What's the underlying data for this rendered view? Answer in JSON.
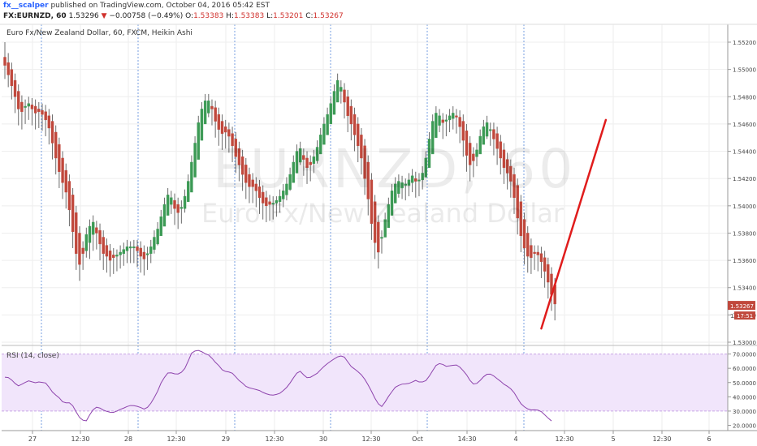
{
  "header": {
    "author": "fx__scalper",
    "published_text": "published on TradingView.com, October 04, 2016 05:42 EST",
    "symbol": "FX:EURNZD, 60",
    "last": "1.53296",
    "change_arrow": "▼",
    "change": "−0.00758 (−0.49%)",
    "open_label": "O:",
    "open": "1.53383",
    "high_label": "H:",
    "high": "1.53383",
    "low_label": "L:",
    "low": "1.53201",
    "close_label": "C:",
    "close": "1.53267"
  },
  "legend_text": "Euro Fx/New Zealand Dollar, 60, FXCM, Heikin Ashi",
  "watermark": {
    "line1": "EURNZD, 60",
    "line2": "Euro Fx/New Zealand Dollar"
  },
  "price_badge": {
    "price": "1.53267",
    "time": "17:51",
    "prefix": "1"
  },
  "colors": {
    "up": "#3c9a55",
    "down": "#c0483c",
    "wick": "#6b6b6b",
    "rsi_line": "#8e44ad",
    "rsi_band": "#f1e5fb",
    "arrow": "#e01c1c",
    "session_line": "#4a7fd6",
    "grid": "#eeeeee"
  },
  "chart_data": [
    {
      "type": "candlestick",
      "title": "Euro Fx/New Zealand Dollar, 60, FXCM, Heikin Ashi",
      "ylim": [
        1.53,
        1.552
      ],
      "y_ticks": [
        "1.55200",
        "1.55000",
        "1.54800",
        "1.54600",
        "1.54400",
        "1.54200",
        "1.54000",
        "1.53800",
        "1.53600",
        "1.53400",
        "1.53200",
        "1.53000"
      ],
      "x_ticks": [
        "27",
        "12:30",
        "28",
        "12:30",
        "29",
        "12:30",
        "30",
        "12:30",
        "Oct",
        "14:30",
        "4",
        "12:30",
        "5",
        "12:30",
        "6"
      ],
      "candles": [
        [
          1.5509,
          1.5503,
          1.552,
          1.5493
        ],
        [
          1.5505,
          1.5496,
          1.5512,
          1.5487
        ],
        [
          1.55,
          1.5488,
          1.5505,
          1.5478
        ],
        [
          1.5492,
          1.548,
          1.5497,
          1.5468
        ],
        [
          1.5484,
          1.5471,
          1.5489,
          1.5459
        ],
        [
          1.5476,
          1.5469,
          1.5481,
          1.5456
        ],
        [
          1.5473,
          1.5473,
          1.5478,
          1.546
        ],
        [
          1.5473,
          1.5475,
          1.548,
          1.5463
        ],
        [
          1.5474,
          1.5471,
          1.5479,
          1.5459
        ],
        [
          1.5473,
          1.5468,
          1.5478,
          1.5456
        ],
        [
          1.5471,
          1.5469,
          1.5476,
          1.5457
        ],
        [
          1.547,
          1.5467,
          1.5475,
          1.5455
        ],
        [
          1.5469,
          1.5463,
          1.5474,
          1.5451
        ],
        [
          1.5466,
          1.5457,
          1.5471,
          1.5445
        ],
        [
          1.5462,
          1.5446,
          1.5467,
          1.5434
        ],
        [
          1.5454,
          1.5435,
          1.5459,
          1.5423
        ],
        [
          1.5445,
          1.5425,
          1.545,
          1.5413
        ],
        [
          1.5435,
          1.5417,
          1.544,
          1.5405
        ],
        [
          1.5426,
          1.541,
          1.5431,
          1.5398
        ],
        [
          1.5418,
          1.5397,
          1.5423,
          1.5385
        ],
        [
          1.5408,
          1.5381,
          1.5413,
          1.5369
        ],
        [
          1.5395,
          1.5365,
          1.54,
          1.5353
        ],
        [
          1.538,
          1.5357,
          1.5385,
          1.5345
        ],
        [
          1.5369,
          1.5365,
          1.5374,
          1.5353
        ],
        [
          1.5367,
          1.5379,
          1.5384,
          1.5362
        ],
        [
          1.5373,
          1.5385,
          1.539,
          1.5361
        ],
        [
          1.5379,
          1.5388,
          1.5393,
          1.5367
        ],
        [
          1.5384,
          1.538,
          1.5389,
          1.5368
        ],
        [
          1.5382,
          1.5372,
          1.5387,
          1.536
        ],
        [
          1.5377,
          1.5365,
          1.5382,
          1.5353
        ],
        [
          1.5371,
          1.5363,
          1.5376,
          1.5351
        ],
        [
          1.5367,
          1.536,
          1.5372,
          1.5348
        ],
        [
          1.5364,
          1.5362,
          1.5369,
          1.535
        ],
        [
          1.5363,
          1.5364,
          1.5368,
          1.5352
        ],
        [
          1.5364,
          1.5366,
          1.5371,
          1.5354
        ],
        [
          1.5365,
          1.5368,
          1.5373,
          1.5356
        ],
        [
          1.5367,
          1.537,
          1.5375,
          1.5358
        ],
        [
          1.5369,
          1.537,
          1.5374,
          1.5358
        ],
        [
          1.537,
          1.537,
          1.5375,
          1.5358
        ],
        [
          1.537,
          1.5367,
          1.5375,
          1.5355
        ],
        [
          1.5369,
          1.5363,
          1.5374,
          1.5351
        ],
        [
          1.5366,
          1.5361,
          1.5371,
          1.5349
        ],
        [
          1.5364,
          1.5365,
          1.537,
          1.5353
        ],
        [
          1.5365,
          1.537,
          1.5375,
          1.5358
        ],
        [
          1.5368,
          1.5377,
          1.5382,
          1.5365
        ],
        [
          1.5372,
          1.5383,
          1.5388,
          1.5371
        ],
        [
          1.5378,
          1.5392,
          1.5397,
          1.538
        ],
        [
          1.5385,
          1.5401,
          1.5406,
          1.5389
        ],
        [
          1.5393,
          1.5408,
          1.5413,
          1.5396
        ],
        [
          1.5401,
          1.5406,
          1.5411,
          1.5394
        ],
        [
          1.5404,
          1.5398,
          1.5409,
          1.5386
        ],
        [
          1.5401,
          1.5395,
          1.5406,
          1.5383
        ],
        [
          1.5398,
          1.5399,
          1.5404,
          1.5387
        ],
        [
          1.5398,
          1.5407,
          1.5412,
          1.5395
        ],
        [
          1.5403,
          1.5418,
          1.5423,
          1.5406
        ],
        [
          1.541,
          1.5432,
          1.5437,
          1.542
        ],
        [
          1.5421,
          1.5446,
          1.5451,
          1.5434
        ],
        [
          1.5434,
          1.5461,
          1.5466,
          1.5449
        ],
        [
          1.5448,
          1.5471,
          1.5476,
          1.5459
        ],
        [
          1.546,
          1.5477,
          1.5482,
          1.5465
        ],
        [
          1.5468,
          1.5477,
          1.5482,
          1.5465
        ],
        [
          1.5473,
          1.5471,
          1.5478,
          1.5459
        ],
        [
          1.5472,
          1.5462,
          1.5477,
          1.545
        ],
        [
          1.5467,
          1.5456,
          1.5472,
          1.5444
        ],
        [
          1.5462,
          1.5453,
          1.5467,
          1.5441
        ],
        [
          1.5458,
          1.5454,
          1.5463,
          1.5442
        ],
        [
          1.5456,
          1.5451,
          1.5461,
          1.5439
        ],
        [
          1.5453,
          1.5444,
          1.5458,
          1.5432
        ],
        [
          1.5449,
          1.5436,
          1.5454,
          1.5424
        ],
        [
          1.5442,
          1.543,
          1.5447,
          1.5418
        ],
        [
          1.5436,
          1.5423,
          1.5441,
          1.5411
        ],
        [
          1.543,
          1.5417,
          1.5435,
          1.5405
        ],
        [
          1.5423,
          1.5414,
          1.5428,
          1.5402
        ],
        [
          1.5419,
          1.5414,
          1.5424,
          1.5402
        ],
        [
          1.5416,
          1.5411,
          1.5421,
          1.5399
        ],
        [
          1.5414,
          1.5406,
          1.5419,
          1.5394
        ],
        [
          1.541,
          1.5402,
          1.5415,
          1.539
        ],
        [
          1.5406,
          1.54,
          1.5411,
          1.5388
        ],
        [
          1.5403,
          1.5401,
          1.5408,
          1.5389
        ],
        [
          1.5402,
          1.5402,
          1.5407,
          1.539
        ],
        [
          1.5402,
          1.5404,
          1.5407,
          1.5392
        ],
        [
          1.5403,
          1.5407,
          1.5412,
          1.5395
        ],
        [
          1.5405,
          1.5411,
          1.5416,
          1.5399
        ],
        [
          1.5408,
          1.5416,
          1.5421,
          1.5404
        ],
        [
          1.5412,
          1.5423,
          1.5428,
          1.5411
        ],
        [
          1.5417,
          1.5432,
          1.5437,
          1.542
        ],
        [
          1.5424,
          1.544,
          1.5445,
          1.5428
        ],
        [
          1.5432,
          1.5442,
          1.5447,
          1.543
        ],
        [
          1.5437,
          1.5434,
          1.5442,
          1.5422
        ],
        [
          1.5435,
          1.5428,
          1.544,
          1.5416
        ],
        [
          1.5432,
          1.543,
          1.5437,
          1.5418
        ],
        [
          1.5431,
          1.5436,
          1.5441,
          1.5424
        ],
        [
          1.5433,
          1.5443,
          1.5448,
          1.5431
        ],
        [
          1.5438,
          1.5452,
          1.5457,
          1.544
        ],
        [
          1.5445,
          1.546,
          1.5465,
          1.5448
        ],
        [
          1.5452,
          1.5467,
          1.5472,
          1.5455
        ],
        [
          1.546,
          1.5475,
          1.548,
          1.5463
        ],
        [
          1.5467,
          1.5484,
          1.5489,
          1.5472
        ],
        [
          1.5476,
          1.5492,
          1.5497,
          1.548
        ],
        [
          1.5484,
          1.5487,
          1.5492,
          1.5475
        ],
        [
          1.5485,
          1.5476,
          1.549,
          1.5464
        ],
        [
          1.548,
          1.5466,
          1.5485,
          1.5454
        ],
        [
          1.5473,
          1.546,
          1.5478,
          1.5448
        ],
        [
          1.5467,
          1.5452,
          1.5472,
          1.544
        ],
        [
          1.546,
          1.5444,
          1.5465,
          1.5432
        ],
        [
          1.5452,
          1.5435,
          1.5457,
          1.5423
        ],
        [
          1.5444,
          1.542,
          1.5449,
          1.5408
        ],
        [
          1.5432,
          1.5405,
          1.5437,
          1.5393
        ],
        [
          1.5419,
          1.5387,
          1.5424,
          1.5375
        ],
        [
          1.5403,
          1.5373,
          1.5408,
          1.5361
        ],
        [
          1.5388,
          1.5366,
          1.5393,
          1.5354
        ],
        [
          1.5377,
          1.5377,
          1.5382,
          1.5365
        ],
        [
          1.5377,
          1.539,
          1.5395,
          1.5378
        ],
        [
          1.5384,
          1.5401,
          1.5406,
          1.5389
        ],
        [
          1.5393,
          1.5411,
          1.5416,
          1.5399
        ],
        [
          1.5402,
          1.5416,
          1.5421,
          1.5404
        ],
        [
          1.5409,
          1.5418,
          1.5423,
          1.5406
        ],
        [
          1.5413,
          1.5417,
          1.5422,
          1.5405
        ],
        [
          1.5415,
          1.5416,
          1.542,
          1.5404
        ],
        [
          1.5415,
          1.5419,
          1.5424,
          1.5407
        ],
        [
          1.5417,
          1.5422,
          1.5427,
          1.541
        ],
        [
          1.542,
          1.5418,
          1.5425,
          1.5406
        ],
        [
          1.5419,
          1.5419,
          1.5424,
          1.5407
        ],
        [
          1.5419,
          1.5424,
          1.5429,
          1.5412
        ],
        [
          1.5421,
          1.5435,
          1.544,
          1.5423
        ],
        [
          1.5428,
          1.5449,
          1.5454,
          1.5437
        ],
        [
          1.5438,
          1.5462,
          1.5467,
          1.545
        ],
        [
          1.545,
          1.5468,
          1.5473,
          1.5456
        ],
        [
          1.5459,
          1.5466,
          1.5471,
          1.5454
        ],
        [
          1.5463,
          1.5461,
          1.5468,
          1.5449
        ],
        [
          1.5462,
          1.5463,
          1.5467,
          1.5451
        ],
        [
          1.5463,
          1.5466,
          1.5471,
          1.5454
        ],
        [
          1.5464,
          1.5468,
          1.5473,
          1.5456
        ],
        [
          1.5466,
          1.5465,
          1.5471,
          1.5453
        ],
        [
          1.5465,
          1.5458,
          1.547,
          1.5446
        ],
        [
          1.5462,
          1.5448,
          1.5467,
          1.5436
        ],
        [
          1.5455,
          1.5437,
          1.546,
          1.5425
        ],
        [
          1.5446,
          1.543,
          1.5451,
          1.5418
        ],
        [
          1.5438,
          1.5433,
          1.5443,
          1.5421
        ],
        [
          1.5436,
          1.5441,
          1.5446,
          1.5429
        ],
        [
          1.5438,
          1.5451,
          1.5456,
          1.5439
        ],
        [
          1.5445,
          1.5458,
          1.5463,
          1.5446
        ],
        [
          1.5451,
          1.5461,
          1.5466,
          1.5449
        ],
        [
          1.5456,
          1.5456,
          1.5461,
          1.5444
        ],
        [
          1.5456,
          1.5449,
          1.5461,
          1.5437
        ],
        [
          1.5453,
          1.5442,
          1.5458,
          1.543
        ],
        [
          1.5447,
          1.5435,
          1.5452,
          1.5423
        ],
        [
          1.5441,
          1.5428,
          1.5446,
          1.5416
        ],
        [
          1.5434,
          1.5424,
          1.5439,
          1.5412
        ],
        [
          1.5429,
          1.5418,
          1.5434,
          1.5406
        ],
        [
          1.5423,
          1.5406,
          1.5428,
          1.5394
        ],
        [
          1.5415,
          1.5391,
          1.542,
          1.5379
        ],
        [
          1.5403,
          1.5378,
          1.5408,
          1.5366
        ],
        [
          1.539,
          1.5369,
          1.5395,
          1.5357
        ],
        [
          1.538,
          1.5363,
          1.5385,
          1.5351
        ],
        [
          1.5371,
          1.5362,
          1.5376,
          1.535
        ],
        [
          1.5366,
          1.5365,
          1.5371,
          1.5353
        ],
        [
          1.5366,
          1.5364,
          1.5371,
          1.5352
        ],
        [
          1.5365,
          1.5359,
          1.537,
          1.5347
        ],
        [
          1.5362,
          1.5352,
          1.5367,
          1.534
        ],
        [
          1.5357,
          1.5344,
          1.5362,
          1.5332
        ],
        [
          1.535,
          1.5335,
          1.5355,
          1.5323
        ],
        [
          1.5342,
          1.5328,
          1.5347,
          1.5316
        ]
      ],
      "projection": {
        "from": [
          158,
          1.531
        ],
        "to": [
          177,
          1.5463
        ]
      }
    },
    {
      "type": "line",
      "title": "RSI (14, close)",
      "ylim": [
        17,
        74
      ],
      "y_ticks": [
        "70.0000",
        "60.0000",
        "50.0000",
        "40.0000",
        "30.0000",
        "20.0000"
      ],
      "band": [
        30,
        70
      ],
      "series": [
        {
          "values": [
            53.8,
            53.5,
            51.8,
            49.4,
            47.7,
            48.8,
            50.1,
            51.2,
            50.5,
            49.9,
            50.4,
            50.1,
            49.7,
            46.8,
            43.4,
            41.2,
            39.3,
            36.5,
            35.8,
            35.8,
            33.7,
            29.4,
            25.5,
            23.6,
            23.2,
            27.4,
            31.0,
            32.7,
            32.1,
            30.7,
            29.8,
            29.2,
            29.1,
            30.0,
            31.2,
            32.1,
            33.2,
            33.9,
            33.8,
            33.3,
            32.5,
            31.4,
            32.6,
            35.5,
            39.5,
            44.0,
            49.7,
            53.6,
            56.7,
            56.8,
            56.1,
            56.0,
            57.2,
            59.9,
            65.1,
            70.6,
            72.1,
            72.5,
            71.6,
            70.2,
            69.3,
            67.0,
            64.2,
            61.9,
            59.0,
            57.8,
            57.4,
            56.5,
            54.0,
            51.4,
            49.6,
            47.3,
            46.3,
            45.7,
            45.1,
            44.4,
            43.1,
            42.1,
            41.4,
            41.2,
            41.7,
            42.5,
            44.4,
            46.6,
            49.7,
            53.3,
            56.6,
            57.9,
            55.4,
            53.4,
            53.7,
            55.1,
            56.5,
            59.0,
            61.3,
            63.3,
            65.0,
            66.6,
            68.0,
            68.6,
            67.8,
            64.5,
            61.3,
            59.5,
            57.6,
            55.4,
            52.3,
            48.3,
            43.8,
            39.0,
            35.1,
            33.2,
            36.4,
            40.3,
            43.6,
            46.7,
            48.0,
            48.9,
            49.1,
            49.4,
            50.4,
            51.5,
            50.4,
            50.4,
            51.4,
            54.5,
            58.3,
            62.0,
            63.3,
            62.7,
            61.4,
            61.7,
            62.1,
            62.3,
            60.8,
            58.3,
            55.4,
            51.5,
            49.0,
            49.4,
            51.5,
            54.1,
            55.8,
            55.9,
            54.6,
            52.7,
            50.9,
            48.8,
            47.4,
            45.6,
            42.9,
            38.9,
            35.2,
            33.0,
            31.5,
            30.8,
            30.9,
            30.7,
            29.6,
            27.4,
            25.1,
            23.1
          ]
        }
      ]
    }
  ]
}
